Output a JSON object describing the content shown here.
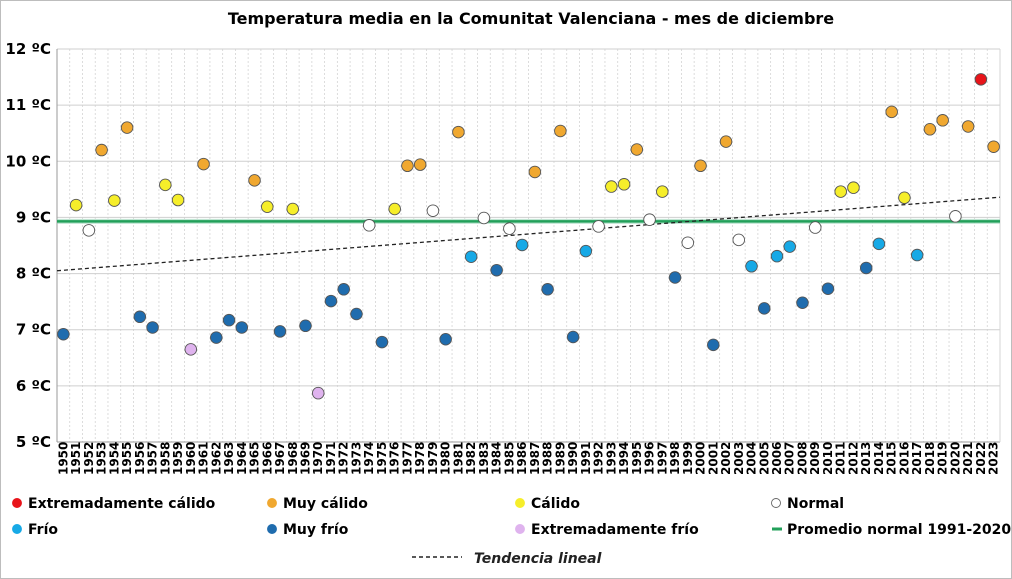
{
  "chart_data": {
    "type": "scatter",
    "title": "Temperatura media en la Comunitat Valenciana - mes de diciembre",
    "xlabel": "",
    "ylabel": "",
    "ylim": [
      5,
      12
    ],
    "y_ticks": [
      {
        "value": 5,
        "label": "5 ºC"
      },
      {
        "value": 6,
        "label": "6 ºC"
      },
      {
        "value": 7,
        "label": "7 ºC"
      },
      {
        "value": 8,
        "label": "8 ºC"
      },
      {
        "value": 9,
        "label": "9 ºC"
      },
      {
        "value": 10,
        "label": "10 ºC"
      },
      {
        "value": 11,
        "label": "11 ºC"
      },
      {
        "value": 12,
        "label": "12 ºC"
      }
    ],
    "grid": true,
    "categories_colors": {
      "extremadamente_calido": "#e8141a",
      "muy_calido": "#f0a830",
      "calido": "#f6ee2a",
      "normal": "#ffffff",
      "frio": "#17a9e6",
      "muy_frio": "#1f6cae",
      "extremadamente_frio": "#dfb3ee"
    },
    "points": [
      {
        "year": 1950,
        "value": 6.92,
        "category": "muy_frio"
      },
      {
        "year": 1951,
        "value": 9.22,
        "category": "calido"
      },
      {
        "year": 1952,
        "value": 8.77,
        "category": "normal"
      },
      {
        "year": 1953,
        "value": 10.2,
        "category": "muy_calido"
      },
      {
        "year": 1954,
        "value": 9.3,
        "category": "calido"
      },
      {
        "year": 1955,
        "value": 10.6,
        "category": "muy_calido"
      },
      {
        "year": 1956,
        "value": 7.23,
        "category": "muy_frio"
      },
      {
        "year": 1957,
        "value": 7.04,
        "category": "muy_frio"
      },
      {
        "year": 1958,
        "value": 9.58,
        "category": "calido"
      },
      {
        "year": 1959,
        "value": 9.31,
        "category": "calido"
      },
      {
        "year": 1960,
        "value": 6.65,
        "category": "extremadamente_frio"
      },
      {
        "year": 1961,
        "value": 9.95,
        "category": "muy_calido"
      },
      {
        "year": 1962,
        "value": 6.86,
        "category": "muy_frio"
      },
      {
        "year": 1963,
        "value": 7.17,
        "category": "muy_frio"
      },
      {
        "year": 1964,
        "value": 7.04,
        "category": "muy_frio"
      },
      {
        "year": 1965,
        "value": 9.66,
        "category": "muy_calido"
      },
      {
        "year": 1966,
        "value": 9.19,
        "category": "calido"
      },
      {
        "year": 1967,
        "value": 6.97,
        "category": "muy_frio"
      },
      {
        "year": 1968,
        "value": 9.15,
        "category": "calido"
      },
      {
        "year": 1969,
        "value": 7.07,
        "category": "muy_frio"
      },
      {
        "year": 1970,
        "value": 5.87,
        "category": "extremadamente_frio"
      },
      {
        "year": 1971,
        "value": 7.51,
        "category": "muy_frio"
      },
      {
        "year": 1972,
        "value": 7.72,
        "category": "muy_frio"
      },
      {
        "year": 1973,
        "value": 7.28,
        "category": "muy_frio"
      },
      {
        "year": 1974,
        "value": 8.86,
        "category": "normal"
      },
      {
        "year": 1975,
        "value": 6.78,
        "category": "muy_frio"
      },
      {
        "year": 1976,
        "value": 9.15,
        "category": "calido"
      },
      {
        "year": 1977,
        "value": 9.92,
        "category": "muy_calido"
      },
      {
        "year": 1978,
        "value": 9.94,
        "category": "muy_calido"
      },
      {
        "year": 1979,
        "value": 9.12,
        "category": "normal"
      },
      {
        "year": 1980,
        "value": 6.83,
        "category": "muy_frio"
      },
      {
        "year": 1981,
        "value": 10.52,
        "category": "muy_calido"
      },
      {
        "year": 1982,
        "value": 8.3,
        "category": "frio"
      },
      {
        "year": 1983,
        "value": 8.99,
        "category": "normal"
      },
      {
        "year": 1984,
        "value": 8.06,
        "category": "muy_frio"
      },
      {
        "year": 1985,
        "value": 8.8,
        "category": "normal"
      },
      {
        "year": 1986,
        "value": 8.51,
        "category": "frio"
      },
      {
        "year": 1987,
        "value": 9.81,
        "category": "muy_calido"
      },
      {
        "year": 1988,
        "value": 7.72,
        "category": "muy_frio"
      },
      {
        "year": 1989,
        "value": 10.54,
        "category": "muy_calido"
      },
      {
        "year": 1990,
        "value": 6.87,
        "category": "muy_frio"
      },
      {
        "year": 1991,
        "value": 8.4,
        "category": "frio"
      },
      {
        "year": 1992,
        "value": 8.84,
        "category": "normal"
      },
      {
        "year": 1993,
        "value": 9.55,
        "category": "calido"
      },
      {
        "year": 1994,
        "value": 9.59,
        "category": "calido"
      },
      {
        "year": 1995,
        "value": 10.21,
        "category": "muy_calido"
      },
      {
        "year": 1996,
        "value": 8.96,
        "category": "normal"
      },
      {
        "year": 1997,
        "value": 9.46,
        "category": "calido"
      },
      {
        "year": 1998,
        "value": 7.93,
        "category": "muy_frio"
      },
      {
        "year": 1999,
        "value": 8.55,
        "category": "normal"
      },
      {
        "year": 2000,
        "value": 9.92,
        "category": "muy_calido"
      },
      {
        "year": 2001,
        "value": 6.73,
        "category": "muy_frio"
      },
      {
        "year": 2002,
        "value": 10.35,
        "category": "muy_calido"
      },
      {
        "year": 2003,
        "value": 8.6,
        "category": "normal"
      },
      {
        "year": 2004,
        "value": 8.13,
        "category": "frio"
      },
      {
        "year": 2005,
        "value": 7.38,
        "category": "muy_frio"
      },
      {
        "year": 2006,
        "value": 8.31,
        "category": "frio"
      },
      {
        "year": 2007,
        "value": 8.48,
        "category": "frio"
      },
      {
        "year": 2008,
        "value": 7.48,
        "category": "muy_frio"
      },
      {
        "year": 2009,
        "value": 8.82,
        "category": "normal"
      },
      {
        "year": 2010,
        "value": 7.73,
        "category": "muy_frio"
      },
      {
        "year": 2011,
        "value": 9.46,
        "category": "calido"
      },
      {
        "year": 2012,
        "value": 9.53,
        "category": "calido"
      },
      {
        "year": 2013,
        "value": 8.1,
        "category": "muy_frio"
      },
      {
        "year": 2014,
        "value": 8.53,
        "category": "frio"
      },
      {
        "year": 2015,
        "value": 10.88,
        "category": "muy_calido"
      },
      {
        "year": 2016,
        "value": 9.35,
        "category": "calido"
      },
      {
        "year": 2017,
        "value": 8.33,
        "category": "frio"
      },
      {
        "year": 2018,
        "value": 10.57,
        "category": "muy_calido"
      },
      {
        "year": 2019,
        "value": 10.73,
        "category": "muy_calido"
      },
      {
        "year": 2020,
        "value": 9.02,
        "category": "normal"
      },
      {
        "year": 2021,
        "value": 10.62,
        "category": "muy_calido"
      },
      {
        "year": 2022,
        "value": 11.46,
        "category": "extremadamente_calido"
      },
      {
        "year": 2023,
        "value": 10.26,
        "category": "muy_calido"
      }
    ],
    "normal_average": {
      "label": "Promedio normal 1991-2020",
      "value": 8.93,
      "color": "#22a05a"
    },
    "trend": {
      "label": "Tendencia lineal",
      "start": {
        "year": 1950,
        "value": 8.05
      },
      "end": {
        "year": 2023,
        "value": 9.36
      }
    },
    "legend": [
      {
        "key": "extremadamente_calido",
        "label": "Extremadamente cálido",
        "kind": "marker"
      },
      {
        "key": "muy_calido",
        "label": "Muy cálido",
        "kind": "marker"
      },
      {
        "key": "calido",
        "label": "Cálido",
        "kind": "marker"
      },
      {
        "key": "normal",
        "label": "Normal",
        "kind": "marker"
      },
      {
        "key": "frio",
        "label": "Frío",
        "kind": "marker"
      },
      {
        "key": "muy_frio",
        "label": "Muy frío",
        "kind": "marker"
      },
      {
        "key": "extremadamente_frio",
        "label": "Extremadamente frío",
        "kind": "marker"
      },
      {
        "key": "promedio",
        "label": "Promedio normal 1991-2020",
        "kind": "line"
      }
    ]
  }
}
